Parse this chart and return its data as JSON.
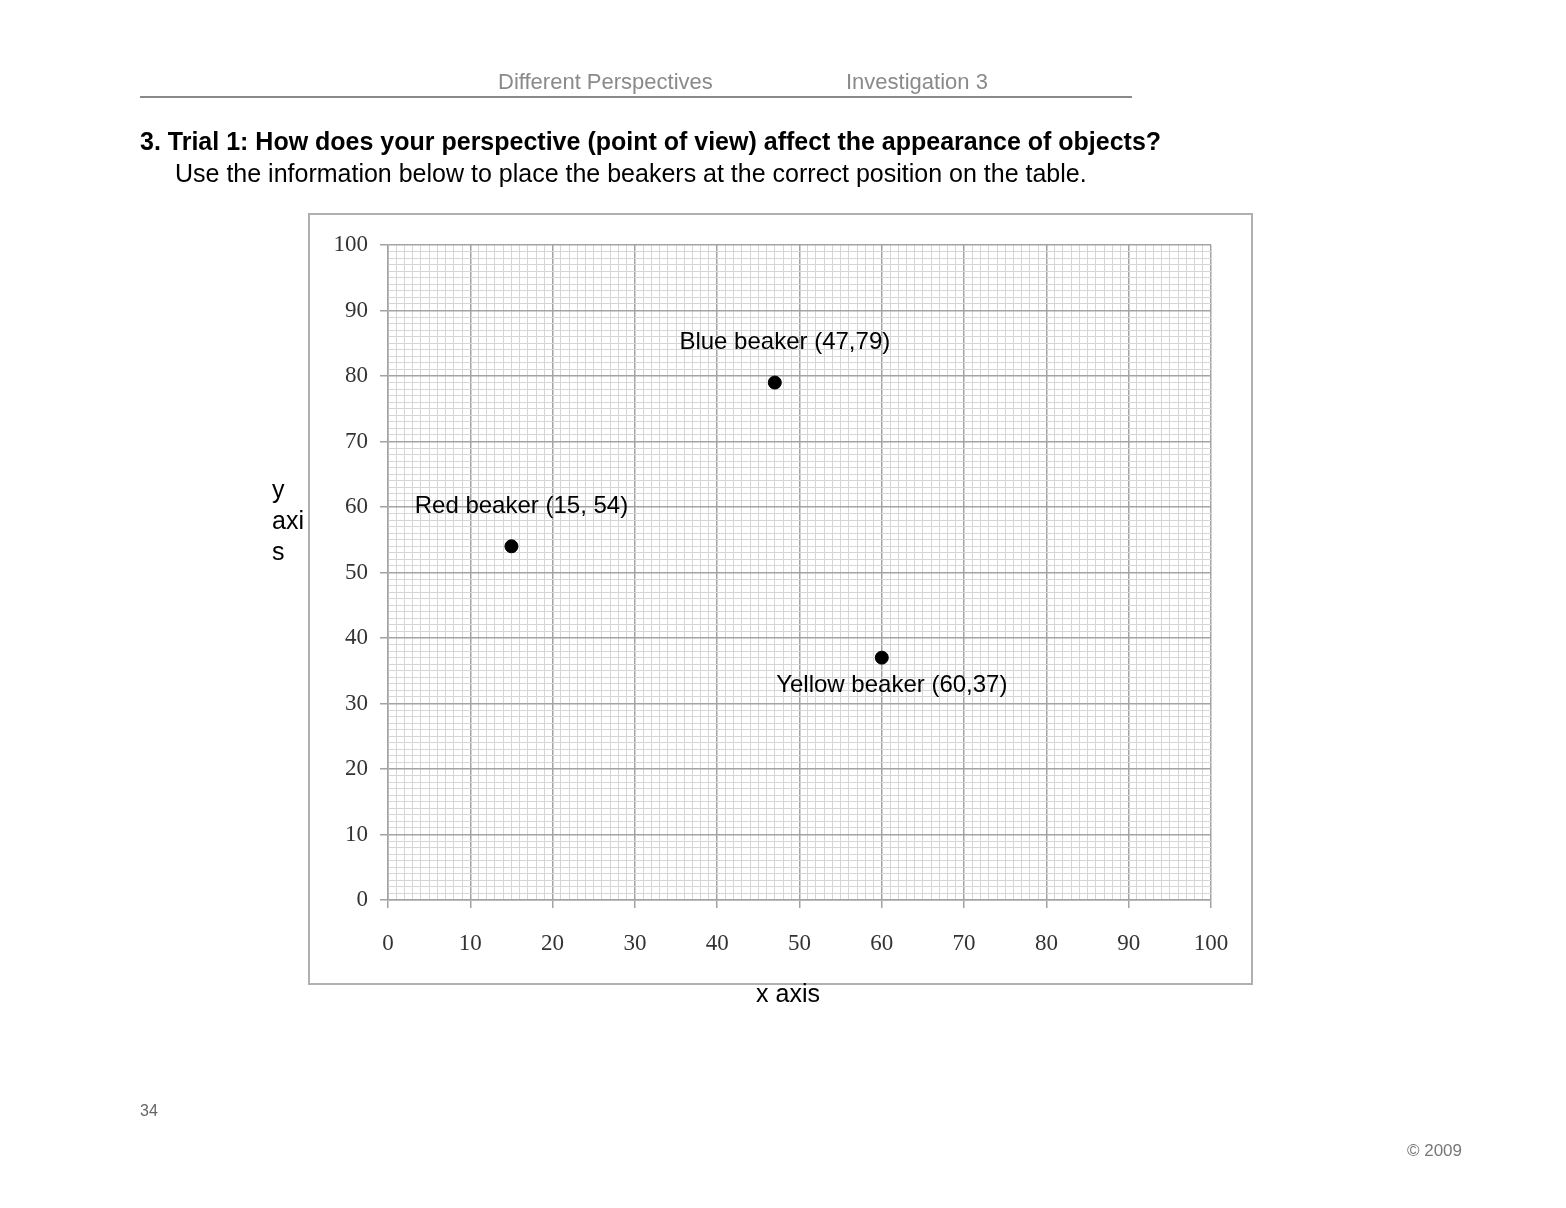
{
  "chart_data": {
    "type": "scatter",
    "title": "3. Trial 1: How does your perspective (point of view) affect the appearance of objects?",
    "subtitle": "Use the information below to place the beakers at the correct position on the table.",
    "xlabel": "x axis",
    "ylabel": "y axis",
    "annotations": [
      "Different Perspectives",
      "Investigation 3",
      "34",
      "© 2009",
      {
        "text": "Red beaker (15, 54)",
        "x": 15,
        "y": 54
      },
      {
        "text": "Blue beaker (47,79)",
        "x": 47,
        "y": 79
      },
      {
        "text": "Yellow beaker (60,37)",
        "x": 60,
        "y": 37
      }
    ],
    "x": [
      15,
      47,
      60
    ],
    "values": [
      54,
      79,
      37
    ],
    "color": "#000000",
    "marker": "circle",
    "grid": true,
    "legend": false,
    "xlim": [
      0,
      100
    ],
    "ylim": [
      0,
      100
    ],
    "xticks": [
      0,
      {
        "value": 1,
        "label": null
      },
      {
        "value": 2,
        "label": null
      },
      {
        "value": 3,
        "label": null
      },
      {
        "value": 4,
        "label": null
      },
      {
        "value": 5,
        "label": null
      },
      {
        "value": 6,
        "label": null
      },
      {
        "value": 7,
        "label": null
      },
      {
        "value": 8,
        "label": null
      },
      {
        "value": 9,
        "label": null
      },
      10,
      {
        "value": 11,
        "label": null
      },
      {
        "value": 12,
        "label": null
      },
      {
        "value": 13,
        "label": null
      },
      {
        "value": 14,
        "label": null
      },
      {
        "value": 15,
        "label": null
      },
      {
        "value": 16,
        "label": null
      },
      {
        "value": 17,
        "label": null
      },
      {
        "value": 18,
        "label": null
      },
      {
        "value": 19,
        "label": null
      },
      20,
      {
        "value": 21,
        "label": null
      },
      {
        "value": 22,
        "label": null
      },
      {
        "value": 23,
        "label": null
      },
      {
        "value": 24,
        "label": null
      },
      {
        "value": 25,
        "label": null
      },
      {
        "value": 26,
        "label": null
      },
      {
        "value": 27,
        "label": null
      },
      {
        "value": 28,
        "label": null
      },
      {
        "value": 29,
        "label": null
      },
      30,
      {
        "value": 31,
        "label": null
      },
      {
        "value": 32,
        "label": null
      },
      {
        "value": 33,
        "label": null
      },
      {
        "value": 34,
        "label": null
      },
      {
        "value": 35,
        "label": null
      },
      {
        "value": 36,
        "label": null
      },
      {
        "value": 37,
        "label": null
      },
      {
        "value": 38,
        "label": null
      },
      {
        "value": 39,
        "label": null
      },
      40,
      {
        "value": 41,
        "label": null
      },
      {
        "value": 42,
        "label": null
      },
      {
        "value": 43,
        "label": null
      },
      {
        "value": 44,
        "label": null
      },
      {
        "value": 45,
        "label": null
      },
      {
        "value": 46,
        "label": null
      },
      {
        "value": 47,
        "label": null
      },
      {
        "value": 48,
        "label": null
      },
      {
        "value": 49,
        "label": null
      },
      50,
      {
        "value": 51,
        "label": null
      },
      {
        "value": 52,
        "label": null
      },
      {
        "value": 53,
        "label": null
      },
      {
        "value": 54,
        "label": null
      },
      {
        "value": 55,
        "label": null
      },
      {
        "value": 56,
        "label": null
      },
      {
        "value": 57,
        "label": null
      },
      {
        "value": 58,
        "label": null
      },
      {
        "value": 59,
        "label": null
      },
      60,
      {
        "value": 61,
        "label": null
      },
      {
        "value": 62,
        "label": null
      },
      {
        "value": 63,
        "label": null
      },
      {
        "value": 64,
        "label": null
      },
      {
        "value": 65,
        "label": null
      },
      {
        "value": 66,
        "label": null
      },
      {
        "value": 67,
        "label": null
      },
      {
        "value": 68,
        "label": null
      },
      {
        "value": 69,
        "label": null
      },
      70,
      {
        "value": 71,
        "label": null
      },
      {
        "value": 72,
        "label": null
      },
      {
        "value": 73,
        "label": null
      },
      {
        "value": 74,
        "label": null
      },
      {
        "value": 75,
        "label": null
      },
      {
        "value": 76,
        "label": null
      },
      {
        "value": 77,
        "label": null
      },
      {
        "value": 78,
        "label": null
      },
      {
        "value": 79,
        "label": null
      },
      80,
      {
        "value": 81,
        "label": null
      },
      {
        "value": 82,
        "label": null
      },
      {
        "value": 83,
        "label": null
      },
      {
        "value": 84,
        "label": null
      },
      {
        "value": 85,
        "label": null
      },
      {
        "value": 86,
        "label": null
      },
      {
        "value": 87,
        "label": null
      },
      {
        "value": 88,
        "label": null
      },
      {
        "value": 89,
        "label": null
      },
      90,
      {
        "value": 91,
        "label": null
      },
      {
        "value": 92,
        "label": null
      },
      {
        "value": 93,
        "label": null
      },
      {
        "value": 94,
        "label": null
      },
      {
        "value": 95,
        "label": null
      },
      {
        "value": 96,
        "label": null
      },
      {
        "value": 97,
        "label": null
      },
      {
        "value": 98,
        "label": null
      },
      {
        "value": 99,
        "label": null
      },
      100
    ],
    "yticks": [
      0,
      {
        "value": 1,
        "label": null
      },
      {
        "value": 2,
        "label": null
      },
      {
        "value": 3,
        "label": null
      },
      {
        "value": 4,
        "label": null
      },
      {
        "value": 5,
        "label": null
      },
      {
        "value": 6,
        "label": null
      },
      {
        "value": 7,
        "label": null
      },
      {
        "value": 8,
        "label": null
      },
      {
        "value": 9,
        "label": null
      },
      10,
      {
        "value": 11,
        "label": null
      },
      {
        "value": 12,
        "label": null
      },
      {
        "value": 13,
        "label": null
      },
      {
        "value": 14,
        "label": null
      },
      {
        "value": 15,
        "label": null
      },
      {
        "value": 16,
        "label": null
      },
      {
        "value": 17,
        "label": null
      },
      {
        "value": 18,
        "label": null
      },
      {
        "value": 19,
        "label": null
      },
      20,
      {
        "value": 21,
        "label": null
      },
      {
        "value": 22,
        "label": null
      },
      {
        "value": 23,
        "label": null
      },
      {
        "value": 24,
        "label": null
      },
      {
        "value": 25,
        "label": null
      },
      {
        "value": 26,
        "label": null
      },
      {
        "value": 27,
        "label": null
      },
      {
        "value": 28,
        "label": null
      },
      {
        "value": 29,
        "label": null
      },
      30,
      {
        "value": 31,
        "label": null
      },
      {
        "value": 32,
        "label": null
      },
      {
        "value": 33,
        "label": null
      },
      {
        "value": 34,
        "label": null
      },
      {
        "value": 35,
        "label": null
      },
      {
        "value": 36,
        "label": null
      },
      {
        "value": 37,
        "label": null
      },
      {
        "value": 38,
        "label": null
      },
      {
        "value": 39,
        "label": null
      },
      40,
      {
        "value": 41,
        "label": null
      },
      {
        "value": 42,
        "label": null
      },
      {
        "value": 43,
        "label": null
      },
      {
        "value": 44,
        "label": null
      },
      {
        "value": 45,
        "label": null
      },
      {
        "value": 46,
        "label": null
      },
      {
        "value": 47,
        "label": null
      },
      {
        "value": 48,
        "label": null
      },
      {
        "value": 49,
        "label": null
      },
      50,
      {
        "value": 51,
        "label": null
      },
      {
        "value": 52,
        "label": null
      },
      {
        "value": 53,
        "label": null
      },
      {
        "value": 54,
        "label": null
      },
      {
        "value": 55,
        "label": null
      },
      {
        "value": 56,
        "label": null
      },
      {
        "value": 57,
        "label": null
      },
      {
        "value": 58,
        "label": null
      },
      {
        "value": 59,
        "label": null
      },
      60,
      {
        "value": 61,
        "label": null
      },
      {
        "value": 62,
        "label": null
      },
      {
        "value": 63,
        "label": null
      },
      {
        "value": 64,
        "label": null
      },
      {
        "value": 65,
        "label": null
      },
      {
        "value": 66,
        "label": null
      },
      {
        "value": 67,
        "label": null
      },
      {
        "value": 68,
        "label": null
      },
      {
        "value": 69,
        "label": null
      },
      70,
      {
        "value": 71,
        "label": null
      },
      {
        "value": 72,
        "label": null
      },
      {
        "value": 73,
        "label": null
      },
      {
        "value": 74,
        "label": null
      },
      {
        "value": 75,
        "label": null
      },
      {
        "value": 76,
        "label": null
      },
      {
        "value": 77,
        "label": null
      },
      {
        "value": 78,
        "label": null
      },
      {
        "value": 79,
        "label": null
      },
      80,
      {
        "value": 81,
        "label": null
      },
      {
        "value": 82,
        "label": null
      },
      {
        "value": 83,
        "label": null
      },
      {
        "value": 84,
        "label": null
      },
      {
        "value": 85,
        "label": null
      },
      {
        "value": 86,
        "label": null
      },
      {
        "value": 87,
        "label": null
      },
      {
        "value": 88,
        "label": null
      },
      {
        "value": 89,
        "label": null
      },
      90,
      {
        "value": 91,
        "label": null
      },
      {
        "value": 92,
        "label": null
      },
      {
        "value": 93,
        "label": null
      },
      {
        "value": 94,
        "label": null
      },
      {
        "value": 95,
        "label": null
      },
      {
        "value": 96,
        "label": null
      },
      {
        "value": 97,
        "label": null
      },
      {
        "value": 98,
        "label": null
      },
      {
        "value": 99,
        "label": null
      },
      100
    ]
  }
}
